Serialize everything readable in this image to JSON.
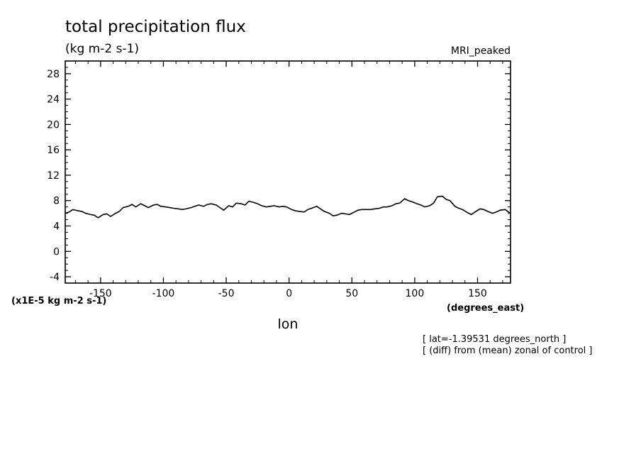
{
  "chart_data": {
    "type": "line",
    "title": "total precipitation flux",
    "units": "(kg m-2 s-1)",
    "model_label": "MRI_peaked",
    "xlabel": "lon",
    "x_units": "(degrees_east)",
    "y_scale_label": "(x1E-5 kg m-2 s-1)",
    "notes": [
      "[ lat=-1.39531 degrees_north ]",
      "[ (diff) from (mean) zonal of control ]"
    ],
    "xlim": [
      -178.125,
      176.25
    ],
    "ylim": [
      -5,
      30
    ],
    "x_ticks": [
      -150,
      -100,
      -50,
      0,
      50,
      100,
      150
    ],
    "x_tick_labels": [
      "-150",
      "-100",
      "-50",
      "0",
      "50",
      "100",
      "150"
    ],
    "y_ticks": [
      -4,
      0,
      4,
      8,
      12,
      16,
      20,
      24,
      28
    ],
    "y_tick_labels": [
      "-4",
      "0",
      "4",
      "8",
      "12",
      "16",
      "20",
      "24",
      "28"
    ],
    "series": [
      {
        "name": "",
        "x": [
          -178,
          -175,
          -172,
          -168,
          -165,
          -162,
          -158,
          -155,
          -152,
          -148,
          -145,
          -142,
          -138,
          -135,
          -132,
          -128,
          -125,
          -122,
          -118,
          -115,
          -112,
          -108,
          -105,
          -102,
          -98,
          -95,
          -92,
          -88,
          -85,
          -82,
          -78,
          -75,
          -72,
          -68,
          -65,
          -62,
          -58,
          -55,
          -52,
          -48,
          -45,
          -42,
          -38,
          -35,
          -32,
          -28,
          -25,
          -22,
          -18,
          -15,
          -12,
          -8,
          -5,
          -2,
          2,
          5,
          8,
          12,
          15,
          18,
          22,
          25,
          28,
          32,
          35,
          38,
          42,
          45,
          48,
          52,
          55,
          58,
          62,
          65,
          68,
          72,
          75,
          78,
          82,
          85,
          88,
          92,
          95,
          98,
          102,
          105,
          108,
          112,
          115,
          118,
          122,
          125,
          128,
          132,
          135,
          138,
          142,
          145,
          148,
          152,
          155,
          158,
          162,
          165,
          168,
          172,
          176
        ],
        "y": [
          6.0,
          6.2,
          6.6,
          6.4,
          6.3,
          6.0,
          5.8,
          5.7,
          5.3,
          5.8,
          5.9,
          5.5,
          6.0,
          6.3,
          6.9,
          7.1,
          7.4,
          7.0,
          7.5,
          7.2,
          6.9,
          7.3,
          7.4,
          7.1,
          7.0,
          6.9,
          6.8,
          6.7,
          6.6,
          6.7,
          6.9,
          7.1,
          7.3,
          7.1,
          7.4,
          7.5,
          7.3,
          6.9,
          6.5,
          7.2,
          7.0,
          7.6,
          7.5,
          7.3,
          7.9,
          7.7,
          7.5,
          7.2,
          7.0,
          7.1,
          7.2,
          7.0,
          7.1,
          7.0,
          6.6,
          6.4,
          6.3,
          6.2,
          6.6,
          6.8,
          7.1,
          6.7,
          6.3,
          6.0,
          5.6,
          5.7,
          6.0,
          5.9,
          5.8,
          6.2,
          6.5,
          6.6,
          6.6,
          6.6,
          6.7,
          6.8,
          7.0,
          7.0,
          7.2,
          7.5,
          7.6,
          8.3,
          8.0,
          7.8,
          7.5,
          7.3,
          7.0,
          7.2,
          7.6,
          8.6,
          8.7,
          8.2,
          8.0,
          7.1,
          6.8,
          6.6,
          6.1,
          5.8,
          6.2,
          6.7,
          6.6,
          6.3,
          6.0,
          6.2,
          6.5,
          6.6,
          6.0
        ]
      }
    ],
    "grid": false,
    "legend": "none"
  },
  "style": {
    "line_color": "#000000",
    "background": "#ffffff"
  }
}
